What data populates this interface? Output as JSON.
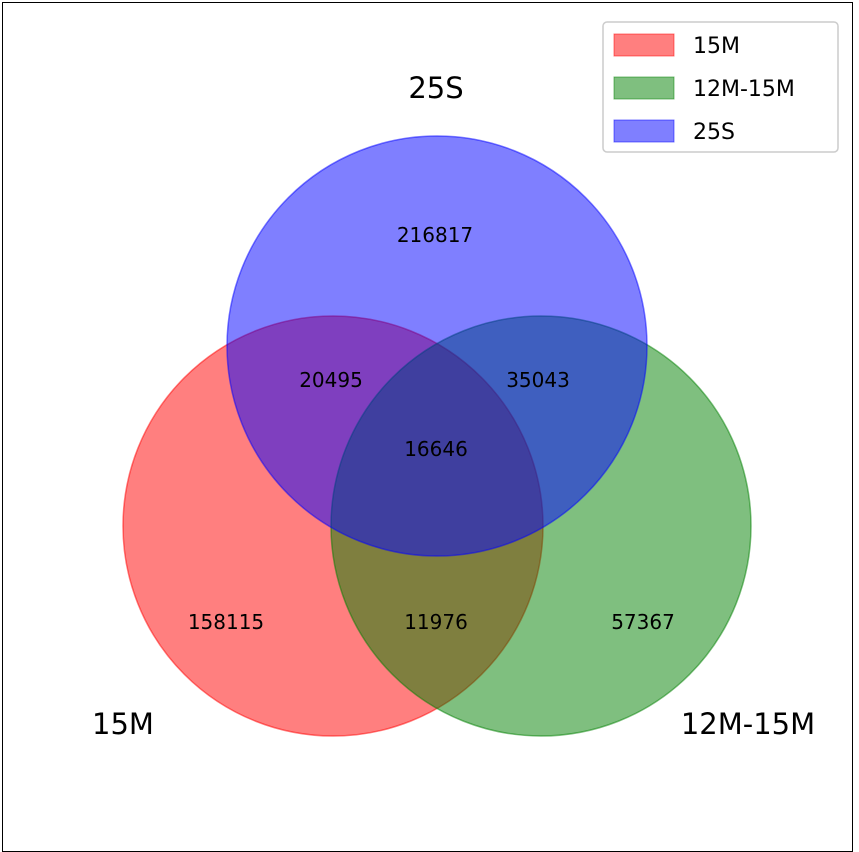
{
  "chart_data": {
    "type": "venn3",
    "sets": [
      {
        "name": "15M",
        "color": "#ff0000"
      },
      {
        "name": "12M-15M",
        "color": "#008000"
      },
      {
        "name": "25S",
        "color": "#0000ff"
      }
    ],
    "regions": {
      "only_15M": "158115",
      "only_12M_15M": "57367",
      "only_25S": "216817",
      "15M_and_12M_15M": "11976",
      "15M_and_25S": "20495",
      "12M_15M_and_25S": "35043",
      "all_three": "16646"
    },
    "legend": {
      "placement": "top-right",
      "entries": [
        "15M",
        "12M-15M",
        "25S"
      ]
    }
  }
}
